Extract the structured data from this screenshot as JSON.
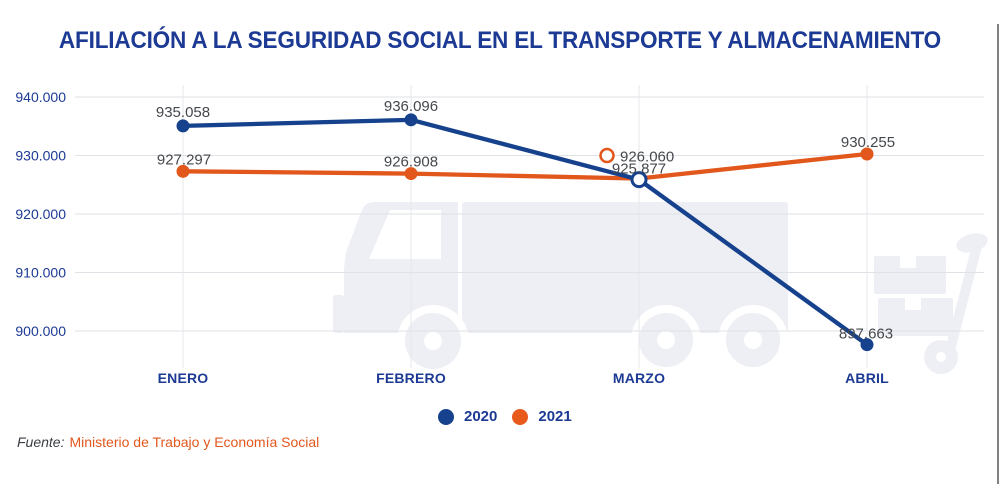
{
  "title": "AFILIACIÓN A LA SEGURIDAD SOCIAL EN EL TRANSPORTE Y ALMACENAMIENTO",
  "source": {
    "prefix": "Fuente:",
    "name": "Ministerio de Trabajo y Economía Social"
  },
  "legend": {
    "items": [
      {
        "label": "2020",
        "color": "#16418C"
      },
      {
        "label": "2021",
        "color": "#E8591C"
      }
    ]
  },
  "colors": {
    "axis_text": "#1C3A94",
    "point_label_text": "#45484D",
    "gridline": "#DFE2E6",
    "watermark": "#EDEFF4",
    "source_accent": "#E2571C"
  },
  "chart_data": {
    "type": "line",
    "title": "AFILIACIÓN A LA SEGURIDAD SOCIAL EN EL TRANSPORTE Y ALMACENAMIENTO",
    "categories": [
      "ENERO",
      "FEBRERO",
      "MARZO",
      "ABRIL"
    ],
    "series": [
      {
        "name": "2020",
        "color": "#16418C",
        "values": [
          935058,
          936096,
          925877,
          897663
        ],
        "point_labels": [
          "935.058",
          "936.096",
          "925.877",
          "897.663"
        ],
        "markers": [
          "filled",
          "filled",
          "hollow",
          "filled"
        ]
      },
      {
        "name": "2021",
        "color": "#E2571C",
        "values": [
          927297,
          926908,
          926060,
          930255
        ],
        "point_labels": [
          "927.297",
          "926.908",
          "926.060",
          "930.255"
        ],
        "markers": [
          "filled",
          "filled",
          "callout-hollow",
          "filled"
        ]
      }
    ],
    "y_axis": {
      "min": 900000,
      "max": 940000,
      "tick_step": 10000,
      "tick_labels": [
        "940.000",
        "930.000",
        "920.000",
        "910.000",
        "900.000"
      ]
    },
    "grid": true,
    "legend_position": "bottom",
    "source": "Fuente: Ministerio de Trabajo y Economía Social"
  }
}
